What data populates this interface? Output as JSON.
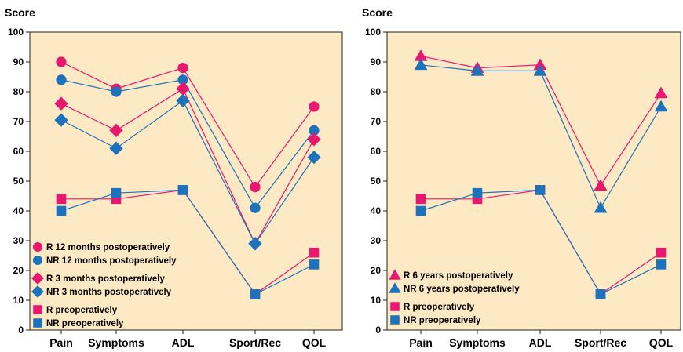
{
  "colors": {
    "plot_bg": "#fdeac4",
    "R": "#e8176f",
    "NR": "#1c72bd"
  },
  "chart_data": [
    {
      "type": "line",
      "ylabel": "Score",
      "ylim": [
        0,
        100
      ],
      "yticks": [
        0,
        10,
        20,
        30,
        40,
        50,
        60,
        70,
        80,
        90,
        100
      ],
      "categories": [
        "Pain",
        "Symptoms",
        "ADL",
        "Sport/Rec",
        "QOL"
      ],
      "legend_position": "bottom-left",
      "series": [
        {
          "name": "R 12 months postoperatively",
          "group": "R",
          "marker": "circle",
          "values": [
            90,
            81,
            88,
            48,
            75
          ]
        },
        {
          "name": "NR 12 months postoperatively",
          "group": "NR",
          "marker": "circle",
          "values": [
            84,
            80,
            84,
            41,
            67
          ]
        },
        {
          "name": "R 3 months postoperatively",
          "group": "R",
          "marker": "diamond",
          "values": [
            76,
            67,
            81,
            29,
            64
          ]
        },
        {
          "name": "NR 3 months postoperatively",
          "group": "NR",
          "marker": "diamond",
          "values": [
            70.5,
            61,
            77,
            29,
            58
          ]
        },
        {
          "name": "R preoperatively",
          "group": "R",
          "marker": "square",
          "values": [
            44,
            44,
            47,
            12,
            26
          ]
        },
        {
          "name": "NR preoperatively",
          "group": "NR",
          "marker": "square",
          "values": [
            40,
            46,
            47,
            12,
            22
          ]
        }
      ]
    },
    {
      "type": "line",
      "ylabel": "Score",
      "ylim": [
        0,
        100
      ],
      "yticks": [
        0,
        10,
        20,
        30,
        40,
        50,
        60,
        70,
        80,
        90,
        100
      ],
      "categories": [
        "Pain",
        "Symptoms",
        "ADL",
        "Sport/Rec",
        "QOL"
      ],
      "legend_position": "bottom-left",
      "series": [
        {
          "name": "R 6 years postoperatively",
          "group": "R",
          "marker": "triangle",
          "values": [
            92,
            88,
            89,
            48.5,
            79.5
          ]
        },
        {
          "name": "NR 6 years postoperatively",
          "group": "NR",
          "marker": "triangle",
          "values": [
            89,
            87,
            87,
            41,
            75
          ]
        },
        {
          "name": "R preoperatively",
          "group": "R",
          "marker": "square",
          "values": [
            44,
            44,
            47,
            12,
            26
          ]
        },
        {
          "name": "NR preoperatively",
          "group": "NR",
          "marker": "square",
          "values": [
            40,
            46,
            47,
            12,
            22
          ]
        }
      ]
    }
  ]
}
